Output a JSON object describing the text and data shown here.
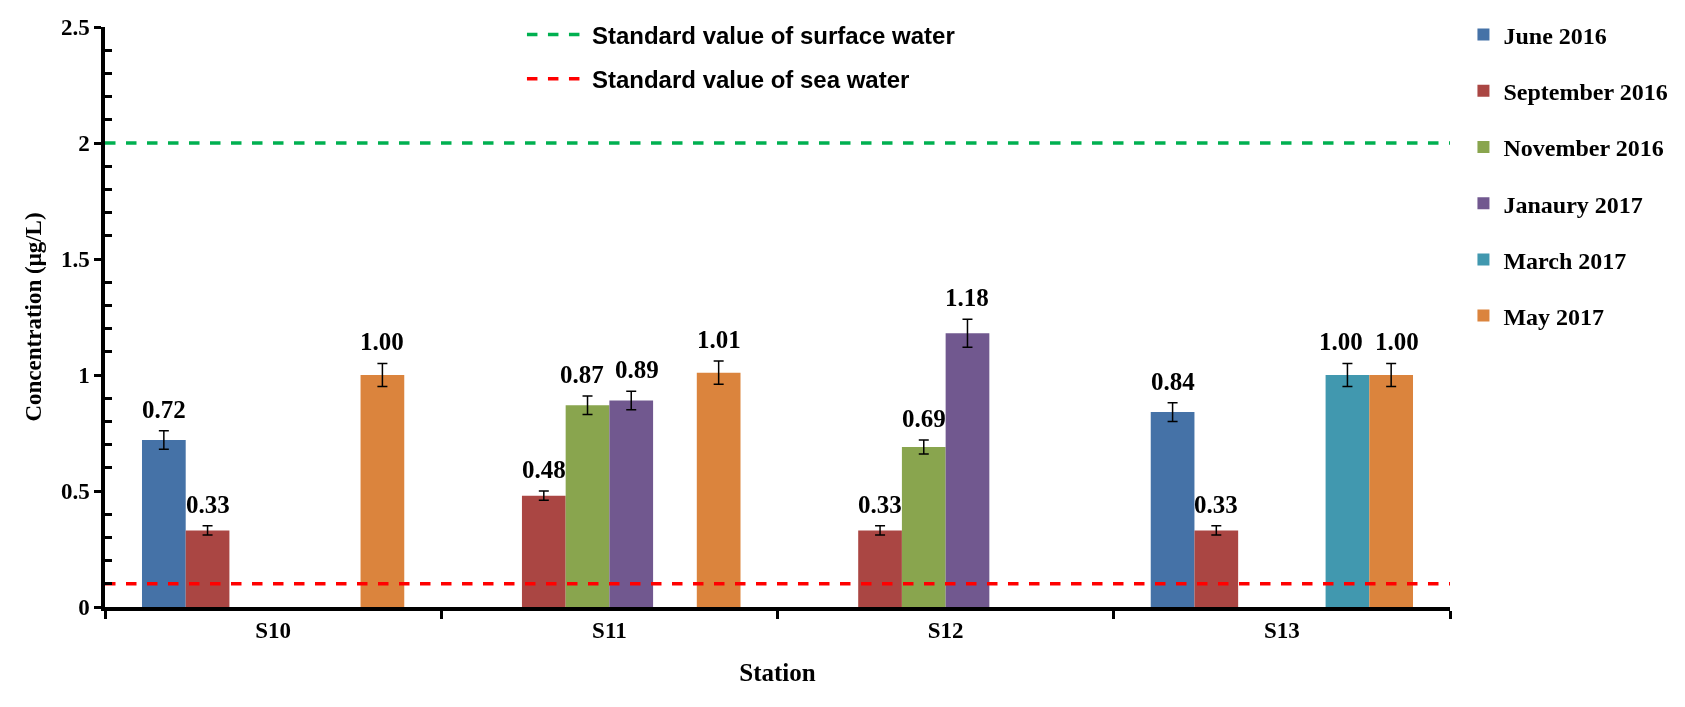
{
  "chart_data": {
    "type": "bar",
    "xlabel": "Station",
    "ylabel": "Concentration (μg/L)",
    "categories": [
      "S10",
      "S11",
      "S12",
      "S13"
    ],
    "series": [
      {
        "name": "June 2016",
        "color": "#4572a7",
        "values": [
          0.72,
          null,
          null,
          0.84
        ],
        "errors": [
          0.04,
          null,
          null,
          0.04
        ],
        "value_labels": [
          "0.72",
          null,
          null,
          "0.84"
        ]
      },
      {
        "name": "September 2016",
        "color": "#aa4643",
        "values": [
          0.33,
          0.48,
          0.33,
          0.33
        ],
        "errors": [
          0.02,
          0.02,
          0.02,
          0.02
        ],
        "value_labels": [
          "0.33",
          "0.48",
          "0.33",
          "0.33"
        ]
      },
      {
        "name": "November 2016",
        "color": "#89a54e",
        "values": [
          null,
          0.87,
          0.69,
          null
        ],
        "errors": [
          null,
          0.04,
          0.03,
          null
        ],
        "value_labels": [
          null,
          "0.87",
          "0.69",
          null
        ]
      },
      {
        "name": "Janaury 2017",
        "color": "#71588f",
        "values": [
          null,
          0.89,
          1.18,
          null
        ],
        "errors": [
          null,
          0.04,
          0.06,
          null
        ],
        "value_labels": [
          null,
          "0.89",
          "1.18",
          null
        ]
      },
      {
        "name": "March 2017",
        "color": "#4198af",
        "values": [
          null,
          null,
          null,
          1.0
        ],
        "errors": [
          null,
          null,
          null,
          0.05
        ],
        "value_labels": [
          null,
          null,
          null,
          "1.00"
        ]
      },
      {
        "name": "May 2017",
        "color": "#db843d",
        "values": [
          1.0,
          1.01,
          null,
          1.0
        ],
        "errors": [
          0.05,
          0.05,
          null,
          0.05
        ],
        "value_labels": [
          "1.00",
          "1.01",
          null,
          "1.00"
        ]
      }
    ],
    "ylim": [
      0,
      2.5
    ],
    "yticks": [
      0,
      {
        "value": 0.1,
        "label": null
      },
      {
        "value": 0.2,
        "label": null
      },
      {
        "value": 0.3,
        "label": null
      },
      {
        "value": 0.4,
        "label": null
      },
      0.5,
      {
        "value": 0.6,
        "label": null
      },
      {
        "value": 0.7,
        "label": null
      },
      {
        "value": 0.8,
        "label": null
      },
      {
        "value": 0.9,
        "label": null
      },
      1,
      {
        "value": 1.1,
        "label": null
      },
      {
        "value": 1.2,
        "label": null
      },
      {
        "value": 1.3,
        "label": null
      },
      {
        "value": 1.4,
        "label": null
      },
      1.5,
      {
        "value": 1.6,
        "label": null
      },
      {
        "value": 1.7,
        "label": null
      },
      {
        "value": 1.8,
        "label": null
      },
      {
        "value": 1.9,
        "label": null
      },
      2,
      {
        "value": 2.1,
        "label": null
      },
      {
        "value": 2.2,
        "label": null
      },
      {
        "value": 2.3,
        "label": null
      },
      {
        "value": 2.4,
        "label": null
      },
      2.5
    ],
    "ref_lines": [
      {
        "axis": "y",
        "value": 2,
        "label": "Standard value of surface water",
        "color": "#00b050",
        "line_style": "dashed"
      },
      {
        "axis": "y",
        "value": 0.1,
        "label": "Standard value of sea water",
        "color": "#ff0000",
        "line_style": "dashed"
      }
    ],
    "legend": "top right"
  }
}
